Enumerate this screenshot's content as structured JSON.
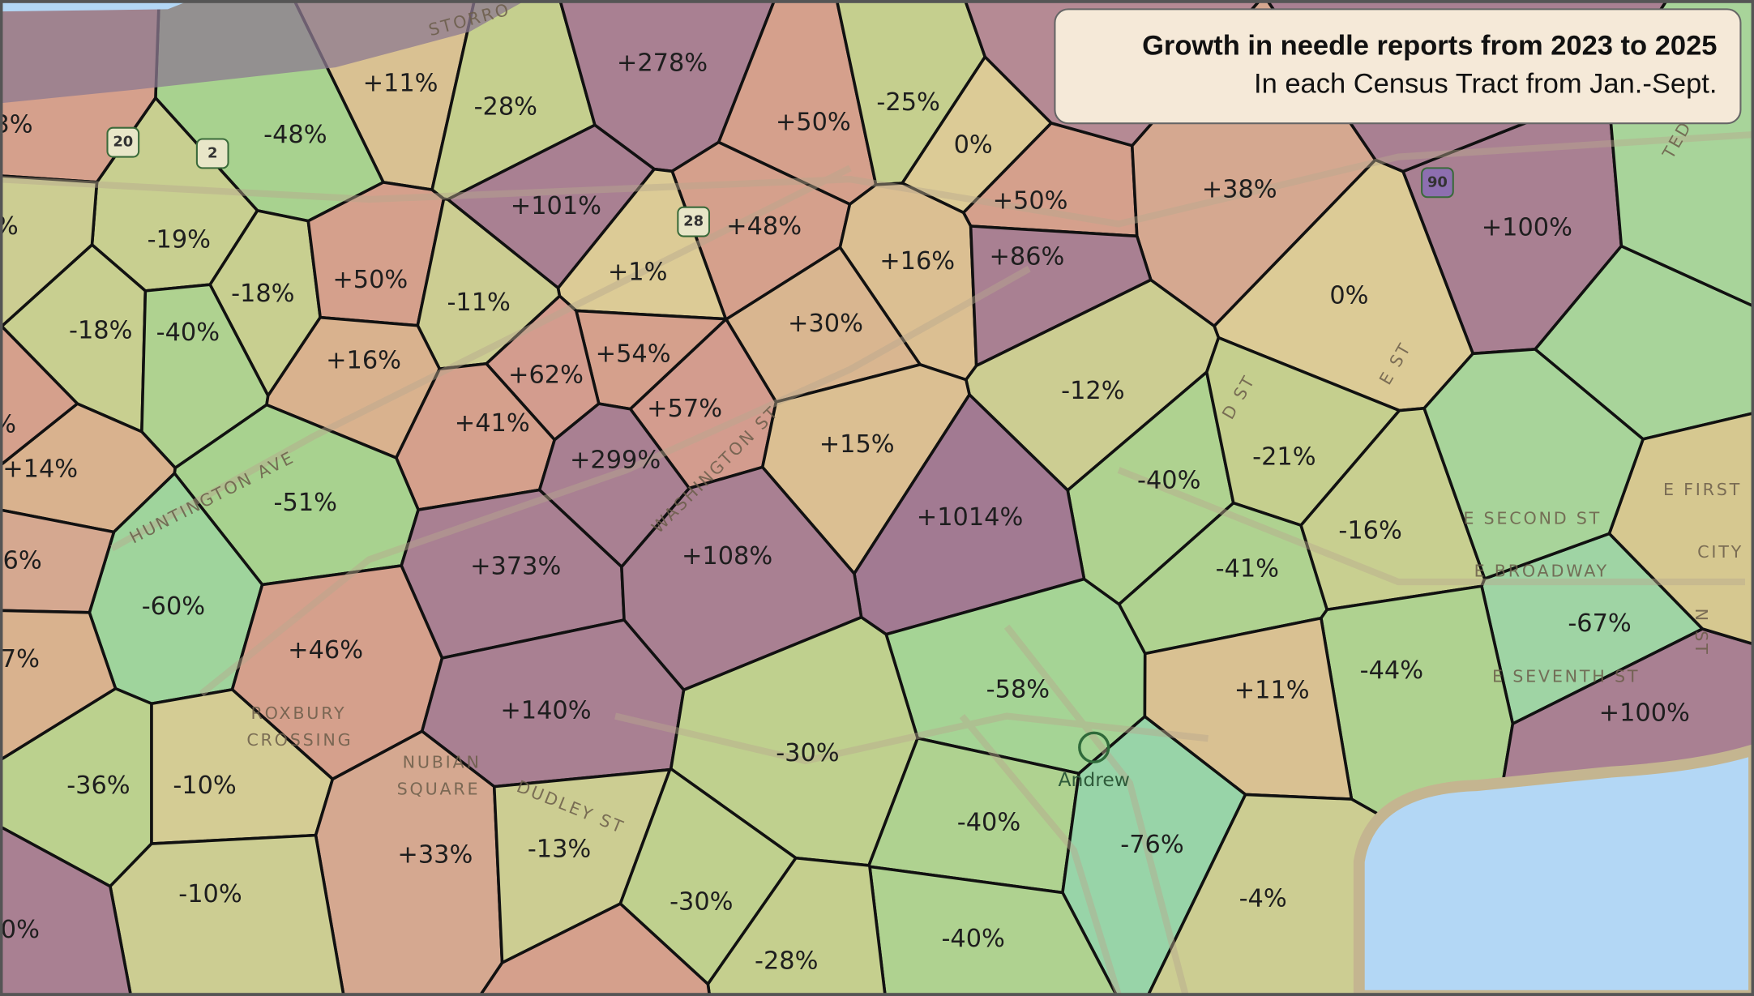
{
  "title": "Growth in needle reports from 2023 to 2025",
  "subtitle": "In each Census Tract from Jan.-Sept.",
  "tracts": [
    {
      "label": "+11%",
      "color": "#d9c192"
    },
    {
      "label": "-28%",
      "color": "#c5cf8e"
    },
    {
      "label": "+278%",
      "color": "#a98092"
    },
    {
      "label": "-48%",
      "color": "#a8d28f"
    },
    {
      "label": "+50%",
      "color": "#d5a08c"
    },
    {
      "label": "-25%",
      "color": "#c5cf8e"
    },
    {
      "label": "0%",
      "color": "#dccb96"
    },
    {
      "label": "+101%",
      "color": "#a98092"
    },
    {
      "label": "+48%",
      "color": "#d5a08c"
    },
    {
      "label": "+50%",
      "color": "#d5a08c"
    },
    {
      "label": "+38%",
      "color": "#d5a890"
    },
    {
      "label": "+100%",
      "color": "#a98092"
    },
    {
      "label": "-19%",
      "color": "#c8cf90"
    },
    {
      "label": "-18%",
      "color": "#c8cf90"
    },
    {
      "label": "+50%",
      "color": "#d5a08c"
    },
    {
      "label": "-11%",
      "color": "#cccd92"
    },
    {
      "label": "+1%",
      "color": "#dccb96"
    },
    {
      "label": "+16%",
      "color": "#dbbf92"
    },
    {
      "label": "+86%",
      "color": "#a98092"
    },
    {
      "label": "0%",
      "color": "#dccb96"
    },
    {
      "label": "-18%",
      "color": "#c8cf90"
    },
    {
      "label": "-40%",
      "color": "#afd290"
    },
    {
      "label": "+16%",
      "color": "#d9b28e"
    },
    {
      "label": "+54%",
      "color": "#d5a08c"
    },
    {
      "label": "+30%",
      "color": "#d9b690"
    },
    {
      "label": "+62%",
      "color": "#d39c8e"
    },
    {
      "label": "-12%",
      "color": "#cccd92"
    },
    {
      "label": "+57%",
      "color": "#d39c8e"
    },
    {
      "label": "+41%",
      "color": "#d5a08c"
    },
    {
      "label": "+15%",
      "color": "#dbbf92"
    },
    {
      "label": "+14%",
      "color": "#d9b28e"
    },
    {
      "label": "+299%",
      "color": "#a98092"
    },
    {
      "label": "-40%",
      "color": "#afd290"
    },
    {
      "label": "-21%",
      "color": "#c5cf8e"
    },
    {
      "label": "-51%",
      "color": "#a8d28f"
    },
    {
      "label": "+1014%",
      "color": "#a27a92"
    },
    {
      "label": "+373%",
      "color": "#a98092"
    },
    {
      "label": "+108%",
      "color": "#a98092"
    },
    {
      "label": "-41%",
      "color": "#afd290"
    },
    {
      "label": "-16%",
      "color": "#c8cf90"
    },
    {
      "label": "-60%",
      "color": "#9fd49c"
    },
    {
      "label": "+46%",
      "color": "#d5a08c"
    },
    {
      "label": "-67%",
      "color": "#9fd4a4"
    },
    {
      "label": "-44%",
      "color": "#afd290"
    },
    {
      "label": "+140%",
      "color": "#a98092"
    },
    {
      "label": "-58%",
      "color": "#a5d495"
    },
    {
      "label": "+11%",
      "color": "#d9c192"
    },
    {
      "label": "+100%",
      "color": "#a98092"
    },
    {
      "label": "-30%",
      "color": "#bfd08e"
    },
    {
      "label": "-36%",
      "color": "#bbd18e"
    },
    {
      "label": "-10%",
      "color": "#d4cc94"
    },
    {
      "label": "-40%",
      "color": "#afd290"
    },
    {
      "label": "-76%",
      "color": "#98d4a8"
    },
    {
      "label": "+33%",
      "color": "#d5a890"
    },
    {
      "label": "-13%",
      "color": "#cccd92"
    },
    {
      "label": "-10%",
      "color": "#cccd92"
    },
    {
      "label": "-30%",
      "color": "#bfd08e"
    },
    {
      "label": "-4%",
      "color": "#cccd92"
    },
    {
      "label": "-40%",
      "color": "#afd290"
    },
    {
      "label": "-28%",
      "color": "#c5cf8e"
    },
    {
      "label": "3%",
      "color": "#d5a08c"
    },
    {
      "label": "%",
      "color": "#cccd92"
    },
    {
      "label": "%",
      "color": "#d5a08c"
    },
    {
      "label": "6%",
      "color": "#d5a890"
    },
    {
      "label": "7%",
      "color": "#d9b28e"
    },
    {
      "label": "0%",
      "color": "#a98092"
    }
  ],
  "streets": [
    "HUNTINGTON AVE",
    "WASHINGTON ST",
    "E SECOND ST",
    "E BROADWAY",
    "E SEVENTH ST",
    "E FIRST",
    "CITY",
    "ROXBURY",
    "CROSSING",
    "NUBIAN",
    "SQUARE",
    "DUDLEY ST",
    "E ST",
    "D ST",
    "N ST",
    "STORRO",
    "TED"
  ],
  "shields": [
    "20",
    "2",
    "28",
    "90"
  ],
  "station": "Andrew"
}
